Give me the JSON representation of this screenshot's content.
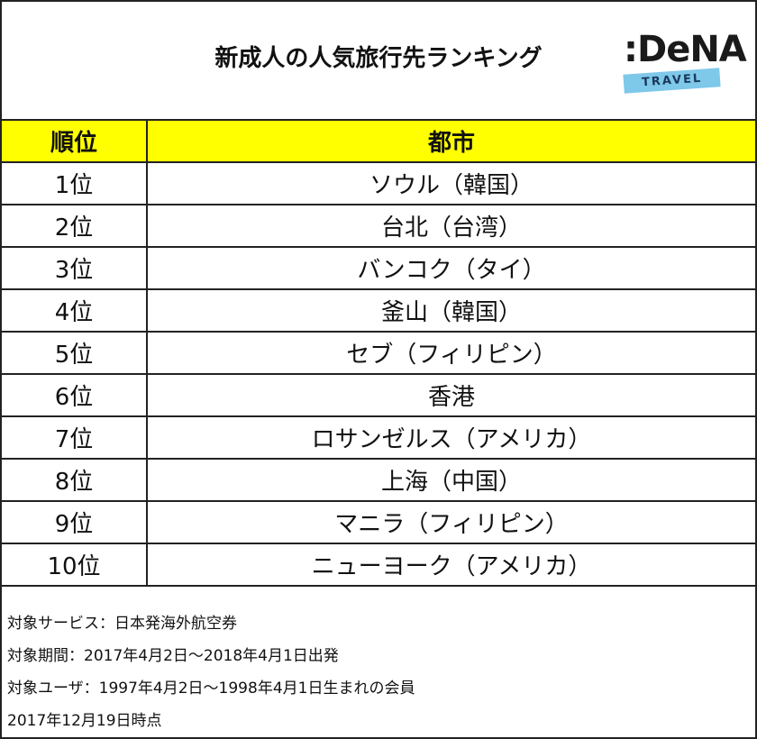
{
  "header": {
    "title": "新成人の人気旅行先ランキング",
    "logo": {
      "name": ":DeNA",
      "sub": "TRAVEL"
    }
  },
  "table": {
    "columns": [
      "順位",
      "都市"
    ],
    "rows": [
      [
        "1位",
        "ソウル（韓国）"
      ],
      [
        "2位",
        "台北（台湾）"
      ],
      [
        "3位",
        "バンコク（タイ）"
      ],
      [
        "4位",
        "釜山（韓国）"
      ],
      [
        "5位",
        "セブ（フィリピン）"
      ],
      [
        "6位",
        "香港"
      ],
      [
        "7位",
        "ロサンゼルス（アメリカ）"
      ],
      [
        "8位",
        "上海（中国）"
      ],
      [
        "9位",
        "マニラ（フィリピン）"
      ],
      [
        "10位",
        "ニューヨーク（アメリカ）"
      ]
    ]
  },
  "notes": [
    "対象サービス：日本発海外航空券",
    "対象期間：2017年4月2日～2018年4月1日出発",
    "対象ユーザ：1997年4月2日～1998年4月1日生まれの会員",
    "2017年12月19日時点"
  ]
}
